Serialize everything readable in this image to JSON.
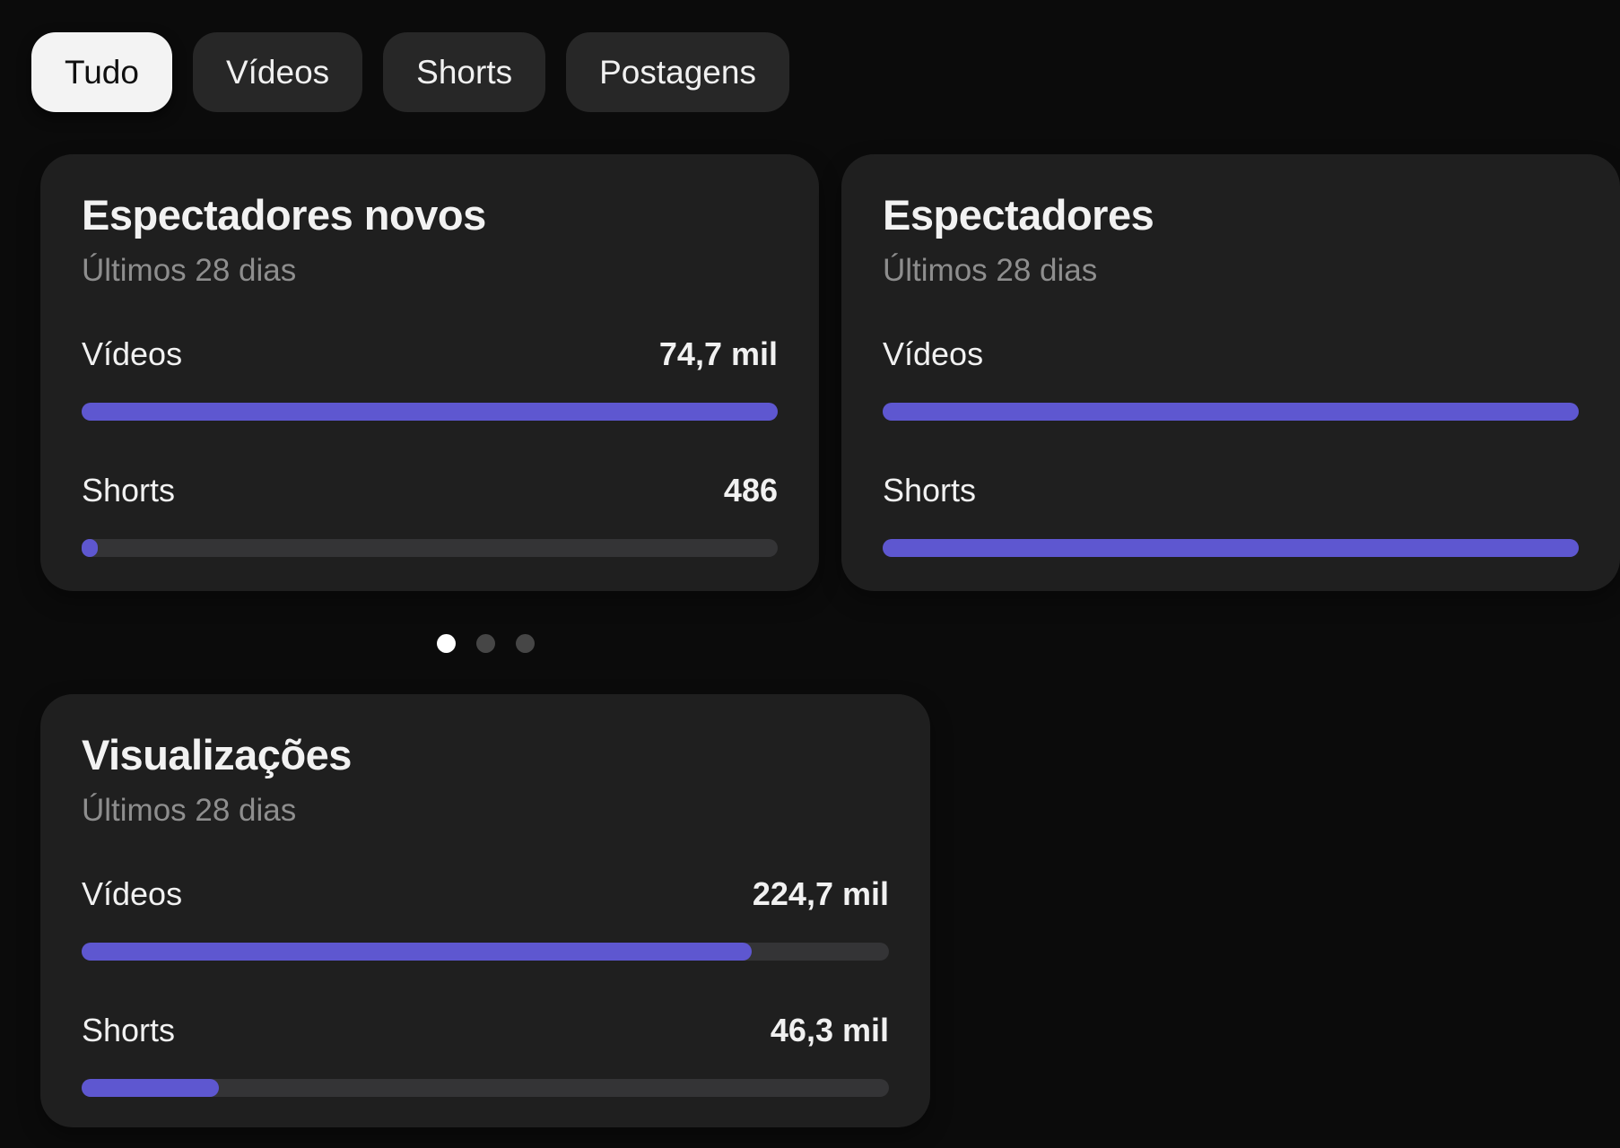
{
  "colors": {
    "page_bg": "#0b0b0b",
    "card_bg": "#1f1f1f",
    "accent_purple": "#5e57d0",
    "bar_track": "#343436",
    "chip_bg": "#272727",
    "chip_selected_bg": "#f3f3f3",
    "text_primary": "#f1f1f1",
    "text_secondary": "#8e8e8e",
    "dot_active": "#ffffff",
    "dot_inactive": "#464646"
  },
  "filters": {
    "items": [
      {
        "label": "Tudo",
        "selected": true
      },
      {
        "label": "Vídeos",
        "selected": false
      },
      {
        "label": "Shorts",
        "selected": false
      },
      {
        "label": "Postagens",
        "selected": false
      }
    ]
  },
  "carousel": {
    "cards": [
      {
        "title": "Espectadores novos",
        "subtitle": "Últimos 28 dias",
        "metrics": [
          {
            "label": "Vídeos",
            "value": "74,7 mil",
            "bar_percent": "100%"
          },
          {
            "label": "Shorts",
            "value": "486",
            "bar_percent": "2.3%"
          }
        ]
      },
      {
        "title": "Espectadores",
        "subtitle": "Últimos 28 dias",
        "metrics": [
          {
            "label": "Vídeos",
            "value": "",
            "bar_percent": "100%"
          },
          {
            "label": "Shorts",
            "value": "",
            "bar_percent": "100%"
          }
        ]
      }
    ],
    "pagination": {
      "total_dots": 3,
      "active_index": 0
    }
  },
  "views_card": {
    "title": "Visualizações",
    "subtitle": "Últimos 28 dias",
    "metrics": [
      {
        "label": "Vídeos",
        "value": "224,7 mil",
        "bar_percent": "83%"
      },
      {
        "label": "Shorts",
        "value": "46,3 mil",
        "bar_percent": "17%"
      }
    ]
  }
}
